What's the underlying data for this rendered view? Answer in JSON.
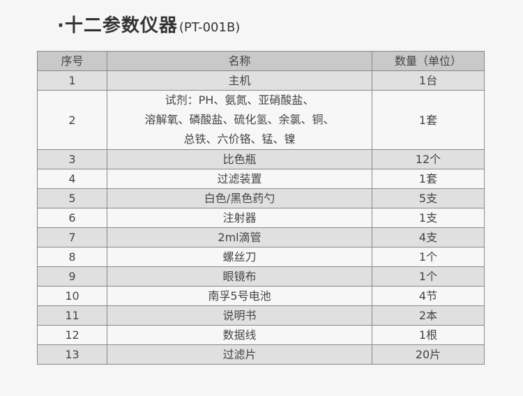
{
  "title": {
    "main": "·十二参数仪器",
    "model": "(PT-001B)"
  },
  "table": {
    "headers": [
      "序号",
      "名称",
      "数量（单位）"
    ],
    "rows": [
      {
        "no": "1",
        "name": "主机",
        "qty": "1台"
      },
      {
        "no": "2",
        "name_lines": [
          "试剂：PH、氨氮、亚硝酸盐、",
          "溶解氧、磷酸盐、硫化氢、余氯、铜、",
          "总铁、六价铬、锰、镍"
        ],
        "qty": "1套"
      },
      {
        "no": "3",
        "name": "比色瓶",
        "qty": "12个"
      },
      {
        "no": "4",
        "name": "过滤装置",
        "qty": "1套"
      },
      {
        "no": "5",
        "name": "白色/黑色药勺",
        "qty": "5支"
      },
      {
        "no": "6",
        "name": "注射器",
        "qty": "1支"
      },
      {
        "no": "7",
        "name": "2ml滴管",
        "qty": "4支"
      },
      {
        "no": "8",
        "name": "螺丝刀",
        "qty": "1个"
      },
      {
        "no": "9",
        "name": "眼镜布",
        "qty": "1个"
      },
      {
        "no": "10",
        "name": "南孚5号电池",
        "qty": "4节"
      },
      {
        "no": "11",
        "name": "说明书",
        "qty": "2本"
      },
      {
        "no": "12",
        "name": "数据线",
        "qty": "1根"
      },
      {
        "no": "13",
        "name": "过滤片",
        "qty": "20片"
      }
    ]
  }
}
